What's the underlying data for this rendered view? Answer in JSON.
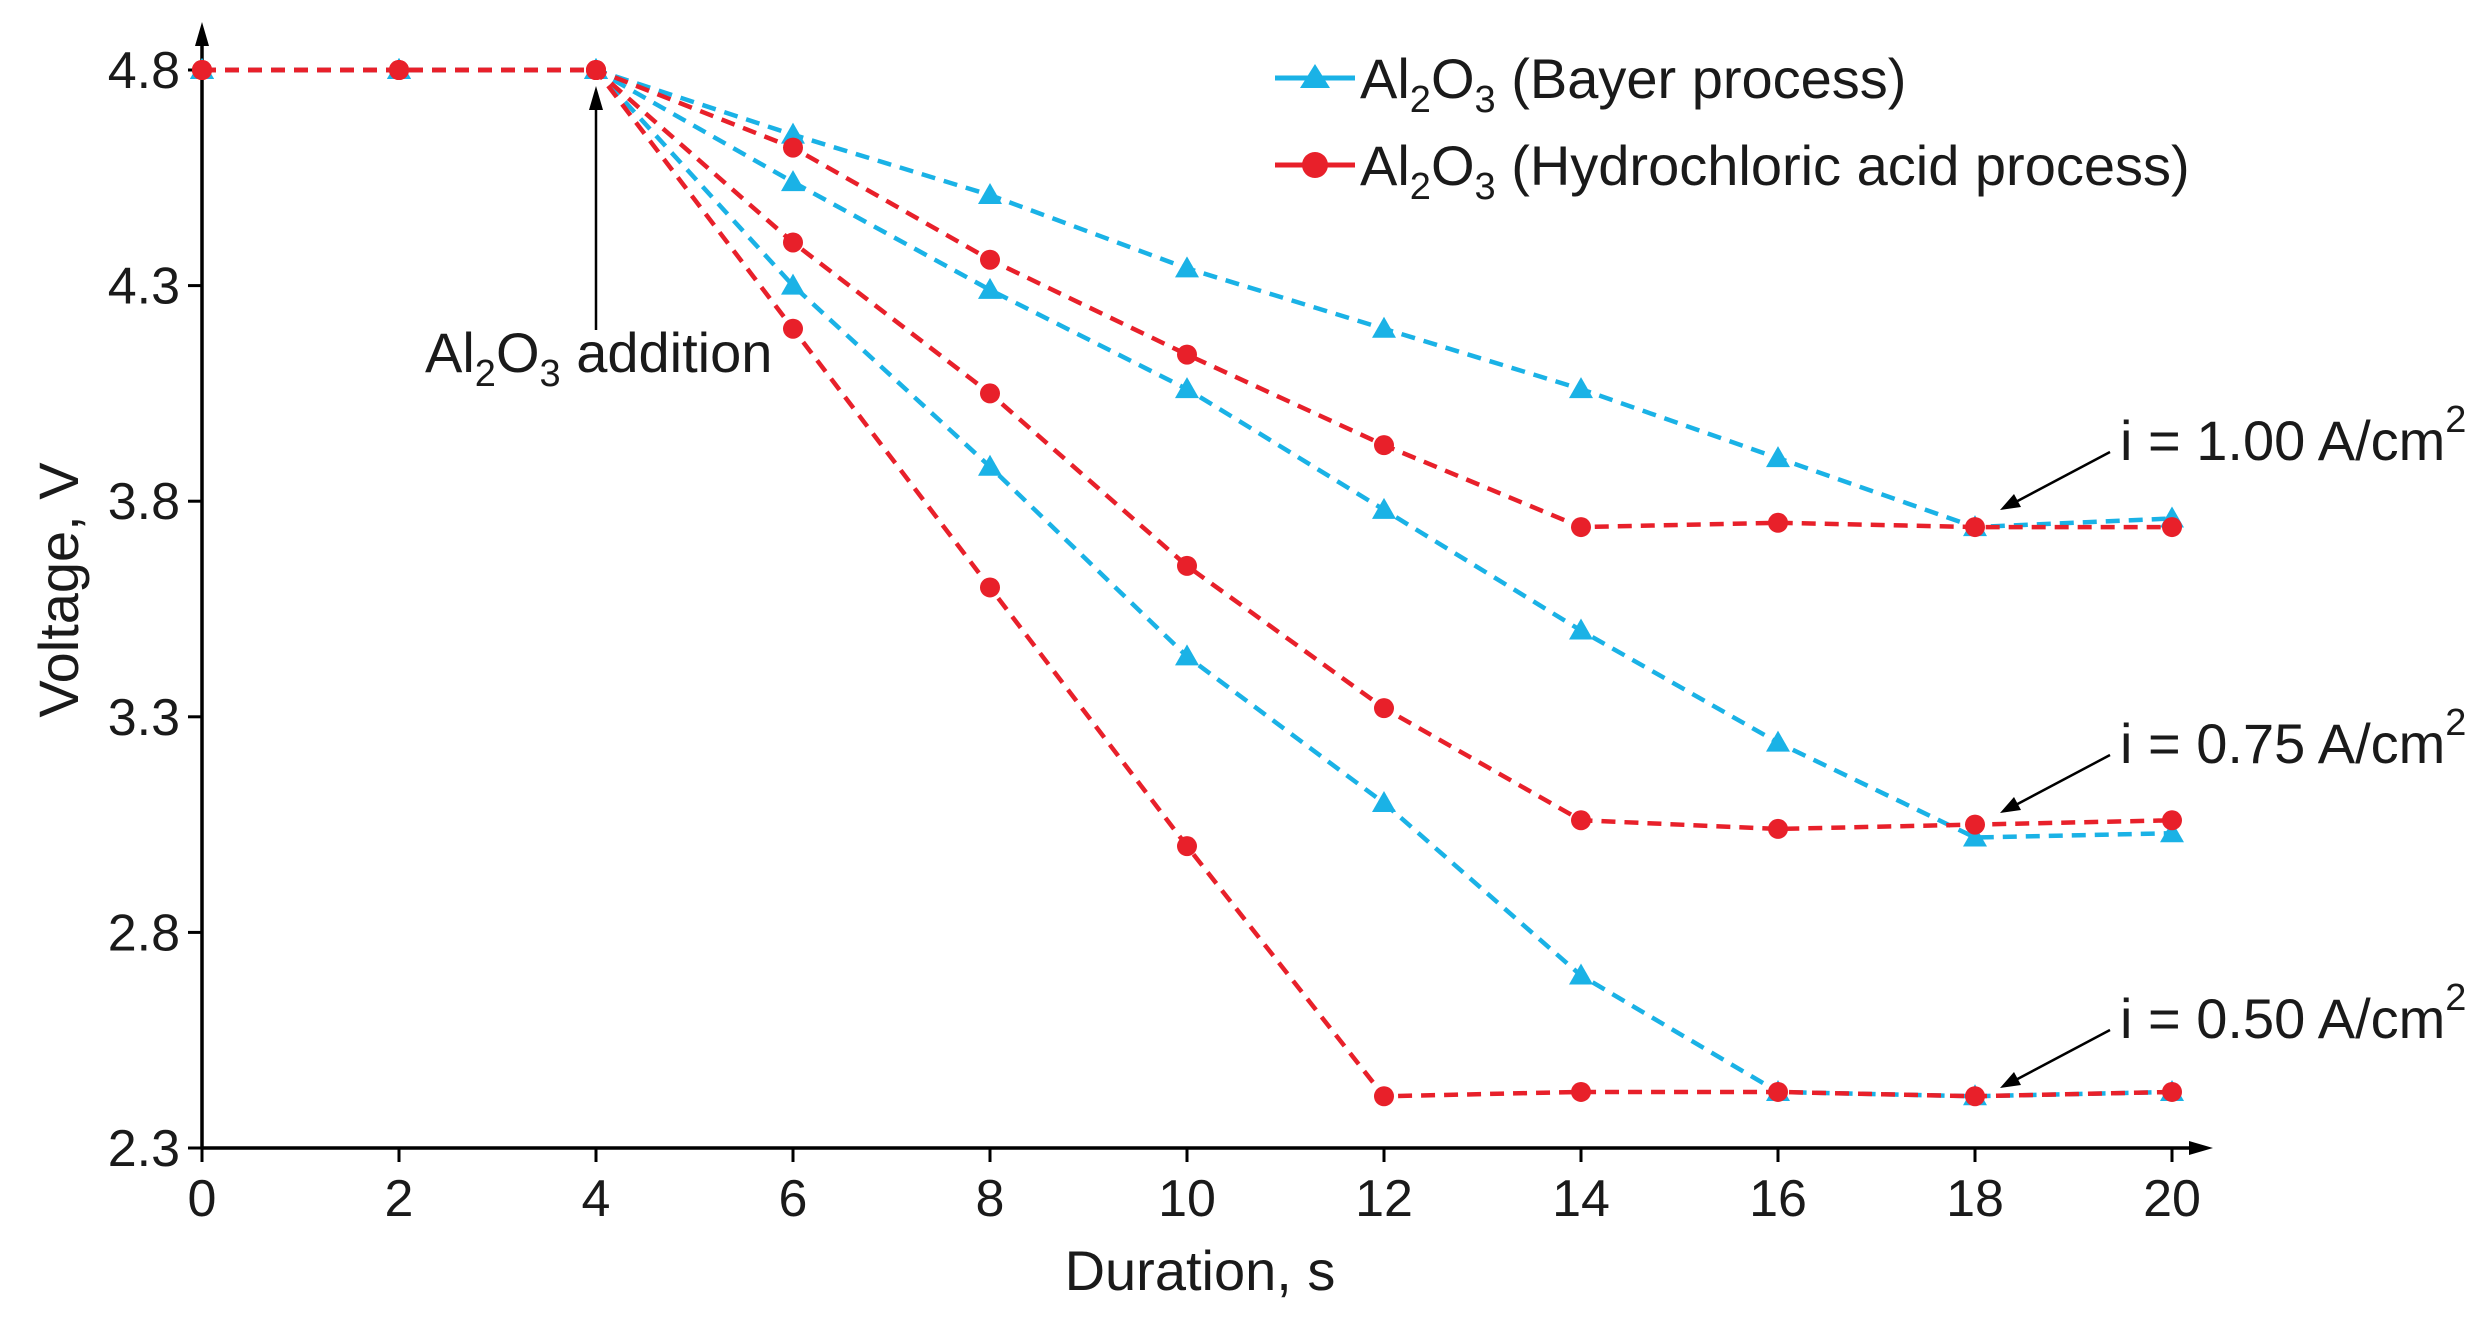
{
  "chart_data": {
    "type": "line",
    "title": "",
    "xlabel": "Duration, s",
    "ylabel": "Voltage, V",
    "xlim": [
      0,
      20
    ],
    "ylim": [
      2.3,
      4.8
    ],
    "xticks": [
      "0",
      "2",
      "4",
      "6",
      "8",
      "10",
      "12",
      "14",
      "16",
      "18",
      "20"
    ],
    "yticks": [
      "2.3",
      "2.8",
      "3.3",
      "3.8",
      "4.3",
      "4.8"
    ],
    "x": [
      0,
      2,
      4,
      6,
      8,
      10,
      12,
      14,
      16,
      18,
      20
    ],
    "legend": [
      {
        "id": "bayer",
        "main": "Al",
        "sub1": "2",
        "mid": "O",
        "sub2": "3",
        "rest": " (Bayer process)"
      },
      {
        "id": "hcl",
        "main": "Al",
        "sub1": "2",
        "mid": "O",
        "sub2": "3",
        "rest": " (Hydrochloric acid process)"
      }
    ],
    "colors": {
      "bayer": "#1ab2e6",
      "hcl": "#e8202a"
    },
    "series": [
      {
        "name": "Bayer, i = 1.00",
        "process": "bayer",
        "marker": "triangle",
        "values": [
          4.8,
          4.8,
          4.8,
          4.65,
          4.51,
          4.34,
          4.2,
          4.06,
          3.9,
          3.74,
          3.76
        ]
      },
      {
        "name": "Bayer, i = 0.75",
        "process": "bayer",
        "marker": "triangle",
        "values": [
          4.8,
          4.8,
          4.8,
          4.54,
          4.29,
          4.06,
          3.78,
          3.5,
          3.24,
          3.02,
          3.03
        ]
      },
      {
        "name": "Bayer, i = 0.50",
        "process": "bayer",
        "marker": "triangle",
        "values": [
          4.8,
          4.8,
          4.8,
          4.3,
          3.88,
          3.44,
          3.1,
          2.7,
          2.43,
          2.42,
          2.43
        ]
      },
      {
        "name": "HCl, i = 1.00",
        "process": "hcl",
        "marker": "circle",
        "values": [
          4.8,
          4.8,
          4.8,
          4.62,
          4.36,
          4.14,
          3.93,
          3.74,
          3.75,
          3.74,
          3.74
        ]
      },
      {
        "name": "HCl, i = 0.75",
        "process": "hcl",
        "marker": "circle",
        "values": [
          4.8,
          4.8,
          4.8,
          4.4,
          4.05,
          3.65,
          3.32,
          3.06,
          3.04,
          3.05,
          3.06
        ]
      },
      {
        "name": "HCl, i = 0.50",
        "process": "hcl",
        "marker": "circle",
        "values": [
          4.8,
          4.8,
          4.8,
          4.2,
          3.6,
          3.0,
          2.42,
          2.43,
          2.43,
          2.42,
          2.43
        ]
      }
    ],
    "annotations": {
      "addition": {
        "main": "Al",
        "sub1": "2",
        "mid": "O",
        "sub2": "3",
        "rest": " addition",
        "x": 4,
        "y": 4.8
      },
      "currents": [
        {
          "label": "i = 1.00 A/cm",
          "sup": "2",
          "x": 18,
          "y": 3.74
        },
        {
          "label": "i = 0.75 A/cm",
          "sup": "2",
          "x": 18,
          "y": 3.03
        },
        {
          "label": "i = 0.50 A/cm",
          "sup": "2",
          "x": 18,
          "y": 2.42
        }
      ]
    }
  }
}
